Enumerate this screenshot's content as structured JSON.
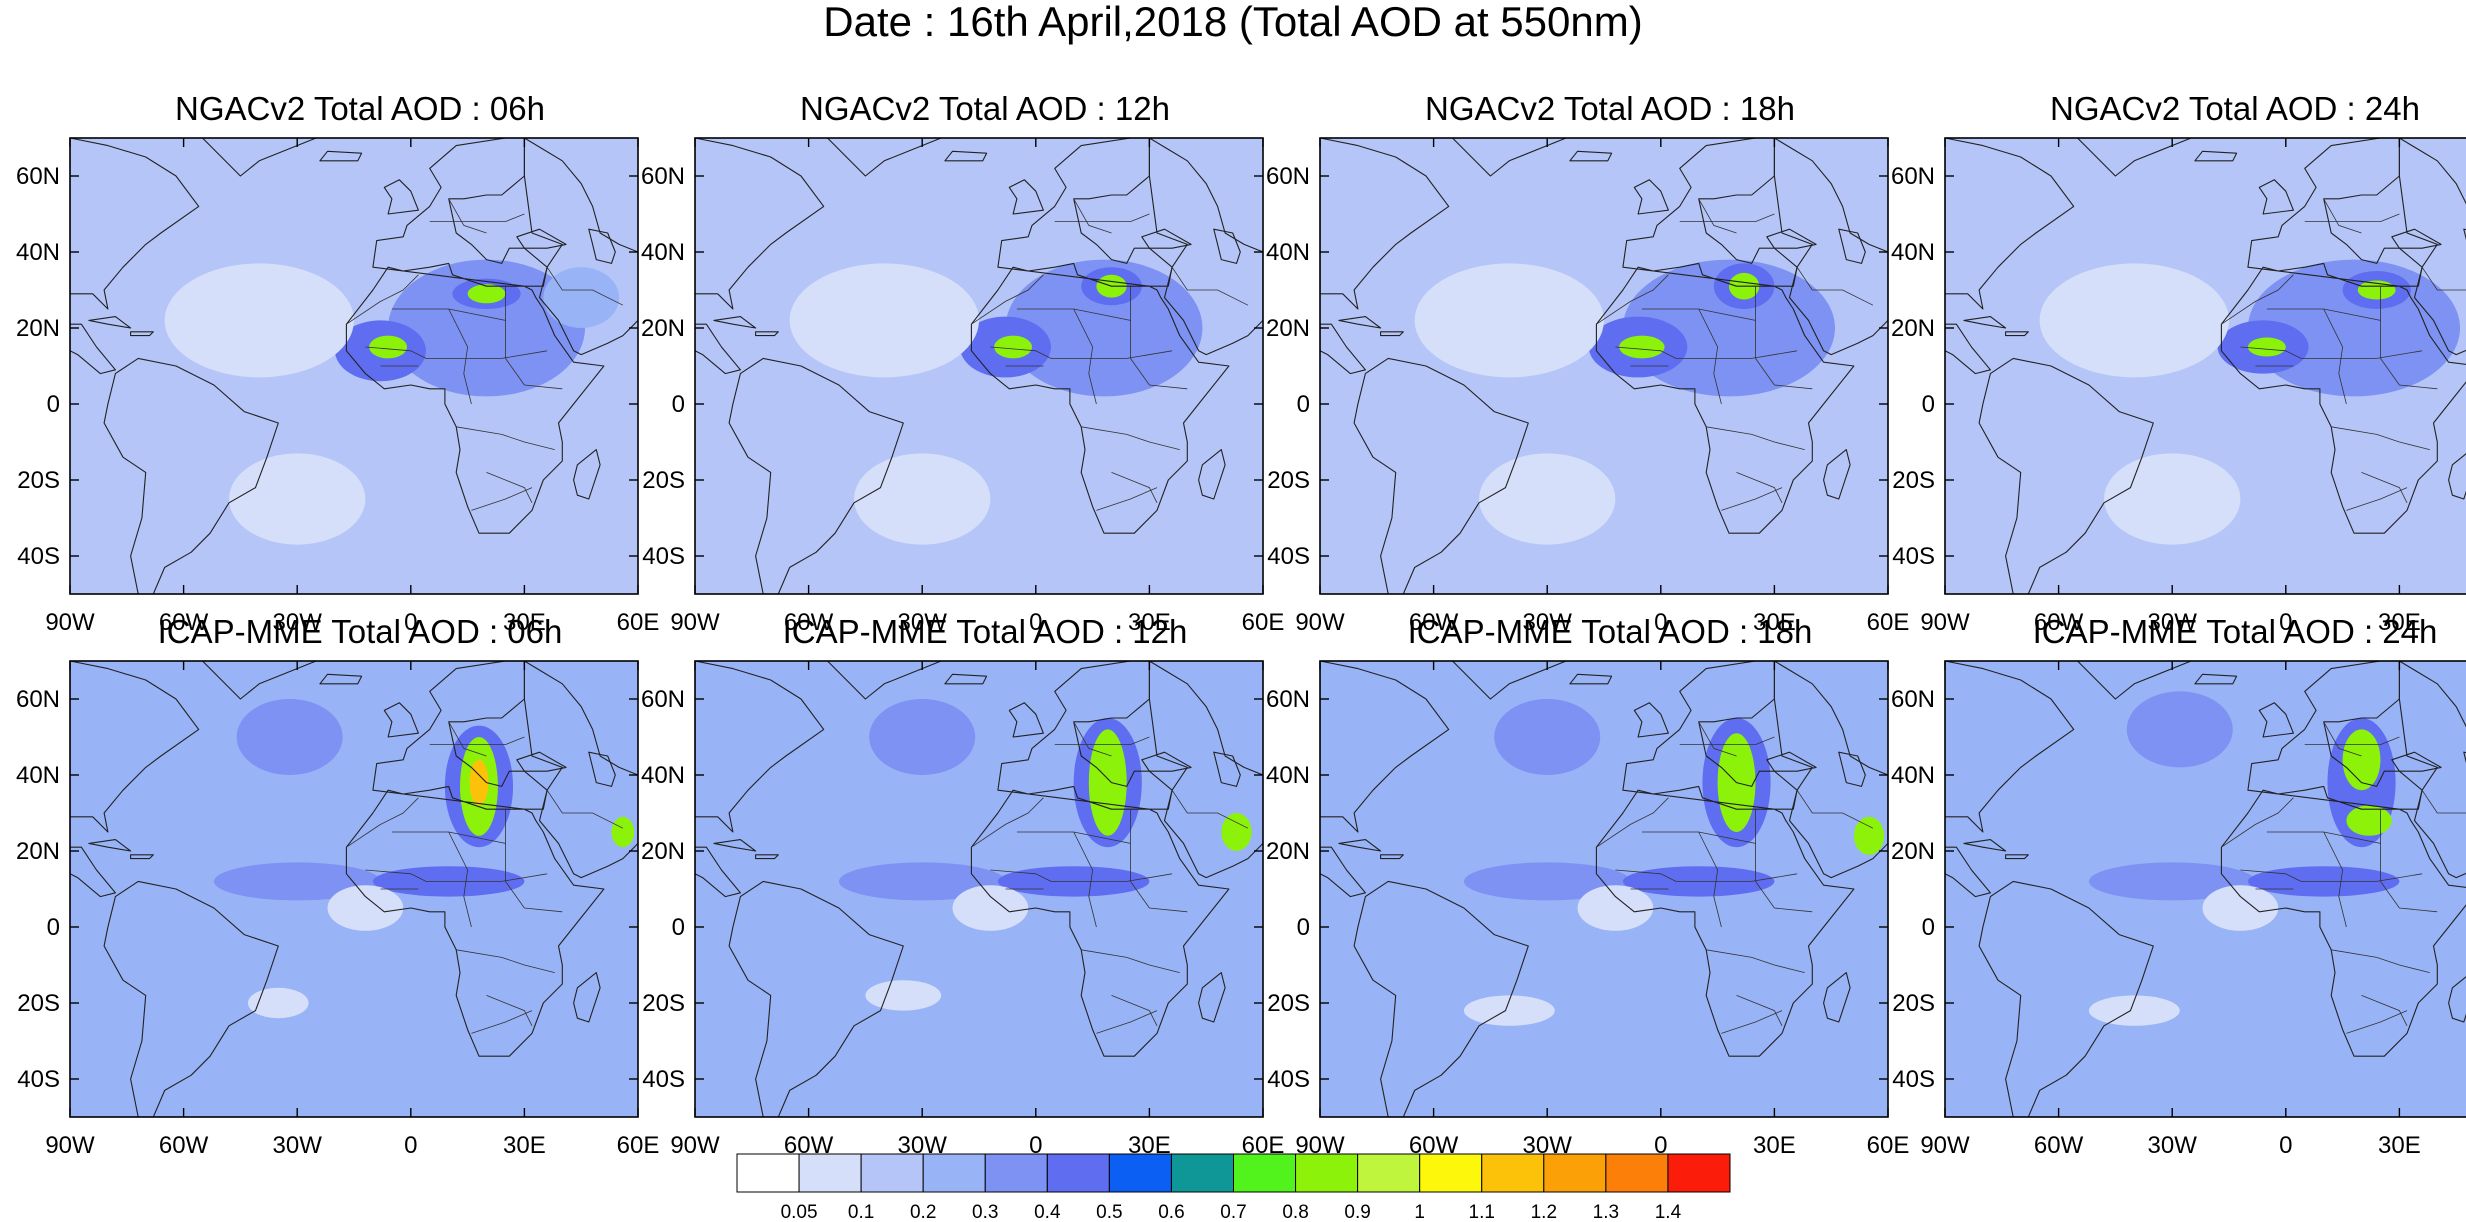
{
  "title": "Date : 16th April,2018 (Total AOD at 550nm)",
  "chart_data": {
    "type": "heatmap",
    "title": "Date : 16th April,2018 (Total AOD at 550nm)",
    "xlim": [
      -90,
      60
    ],
    "ylim": [
      -50,
      70
    ],
    "x_tick_values": [
      -90,
      -60,
      -30,
      0,
      30,
      60
    ],
    "x_tick_labels": [
      "90W",
      "60W",
      "30W",
      "0",
      "30E",
      "60E"
    ],
    "y_tick_values": [
      60,
      40,
      20,
      0,
      -20,
      -40
    ],
    "y_tick_labels": [
      "60N",
      "40N",
      "20N",
      "0",
      "20S",
      "40S"
    ],
    "colorbar": {
      "levels": [
        "0.05",
        "0.1",
        "0.2",
        "0.3",
        "0.4",
        "0.5",
        "0.6",
        "0.7",
        "0.8",
        "0.9",
        "1",
        "1.1",
        "1.2",
        "1.3",
        "1.4"
      ],
      "colors": [
        "#ffffff",
        "#d6dffa",
        "#b5c5f7",
        "#99b3f7",
        "#7d92f2",
        "#5f6df0",
        "#0b5ff2",
        "#0f9696",
        "#52f21c",
        "#8df20a",
        "#bff53d",
        "#fcf70b",
        "#fcc20a",
        "#fca007",
        "#fb7f09",
        "#fc1c0a"
      ]
    },
    "panels": [
      {
        "model": "NGACv2",
        "title": "NGACv2 Total AOD : 06h",
        "forecast_hour": "06h",
        "background_aod": 0.1,
        "features": [
          {
            "lon": 20,
            "lat": 20,
            "rlon": 26,
            "rlat": 18,
            "aod": 0.3
          },
          {
            "lon": -8,
            "lat": 14,
            "rlon": 12,
            "rlat": 8,
            "aod": 0.4
          },
          {
            "lon": -6,
            "lat": 15,
            "rlon": 5,
            "rlat": 3,
            "aod": 0.8
          },
          {
            "lon": 20,
            "lat": 29,
            "rlon": 9,
            "rlat": 4,
            "aod": 0.4
          },
          {
            "lon": 20,
            "lat": 29,
            "rlon": 5,
            "rlat": 2.5,
            "aod": 0.8
          },
          {
            "lon": 45,
            "lat": 28,
            "rlon": 10,
            "rlat": 8,
            "aod": 0.2
          },
          {
            "lon": -40,
            "lat": 22,
            "rlon": 25,
            "rlat": 15,
            "aod": 0.05
          },
          {
            "lon": -30,
            "lat": -25,
            "rlon": 18,
            "rlat": 12,
            "aod": 0.05
          }
        ]
      },
      {
        "model": "NGACv2",
        "title": "NGACv2 Total AOD : 12h",
        "forecast_hour": "12h",
        "background_aod": 0.1,
        "features": [
          {
            "lon": 18,
            "lat": 20,
            "rlon": 26,
            "rlat": 18,
            "aod": 0.3
          },
          {
            "lon": -8,
            "lat": 15,
            "rlon": 12,
            "rlat": 8,
            "aod": 0.4
          },
          {
            "lon": -6,
            "lat": 15,
            "rlon": 5,
            "rlat": 3,
            "aod": 0.8
          },
          {
            "lon": 20,
            "lat": 31,
            "rlon": 8,
            "rlat": 5,
            "aod": 0.4
          },
          {
            "lon": 20,
            "lat": 31,
            "rlon": 4,
            "rlat": 3,
            "aod": 0.8
          },
          {
            "lon": -40,
            "lat": 22,
            "rlon": 25,
            "rlat": 15,
            "aod": 0.05
          },
          {
            "lon": -30,
            "lat": -25,
            "rlon": 18,
            "rlat": 12,
            "aod": 0.05
          }
        ]
      },
      {
        "model": "NGACv2",
        "title": "NGACv2 Total AOD : 18h",
        "forecast_hour": "18h",
        "background_aod": 0.1,
        "features": [
          {
            "lon": 18,
            "lat": 20,
            "rlon": 28,
            "rlat": 18,
            "aod": 0.3
          },
          {
            "lon": -6,
            "lat": 15,
            "rlon": 13,
            "rlat": 8,
            "aod": 0.4
          },
          {
            "lon": -5,
            "lat": 15,
            "rlon": 6,
            "rlat": 3,
            "aod": 0.8
          },
          {
            "lon": 22,
            "lat": 31,
            "rlon": 8,
            "rlat": 6,
            "aod": 0.4
          },
          {
            "lon": 22,
            "lat": 31,
            "rlon": 4,
            "rlat": 3.5,
            "aod": 0.8
          },
          {
            "lon": -40,
            "lat": 22,
            "rlon": 25,
            "rlat": 15,
            "aod": 0.05
          },
          {
            "lon": -30,
            "lat": -25,
            "rlon": 18,
            "rlat": 12,
            "aod": 0.05
          }
        ]
      },
      {
        "model": "NGACv2",
        "title": "NGACv2 Total AOD : 24h",
        "forecast_hour": "24h",
        "background_aod": 0.1,
        "features": [
          {
            "lon": 18,
            "lat": 20,
            "rlon": 28,
            "rlat": 18,
            "aod": 0.3
          },
          {
            "lon": -6,
            "lat": 15,
            "rlon": 12,
            "rlat": 7,
            "aod": 0.4
          },
          {
            "lon": -5,
            "lat": 15,
            "rlon": 5,
            "rlat": 2.5,
            "aod": 0.8
          },
          {
            "lon": 24,
            "lat": 30,
            "rlon": 9,
            "rlat": 5,
            "aod": 0.4
          },
          {
            "lon": 24,
            "lat": 30,
            "rlon": 5,
            "rlat": 2.5,
            "aod": 0.8
          },
          {
            "lon": -40,
            "lat": 22,
            "rlon": 25,
            "rlat": 15,
            "aod": 0.05
          },
          {
            "lon": -30,
            "lat": -25,
            "rlon": 18,
            "rlat": 12,
            "aod": 0.05
          }
        ]
      },
      {
        "model": "ICAP-MME",
        "title": "ICAP-MME Total AOD : 06h",
        "forecast_hour": "06h",
        "background_aod": 0.2,
        "features": [
          {
            "lon": -32,
            "lat": 50,
            "rlon": 14,
            "rlat": 10,
            "aod": 0.3
          },
          {
            "lon": -30,
            "lat": 12,
            "rlon": 22,
            "rlat": 5,
            "aod": 0.3
          },
          {
            "lon": 10,
            "lat": 12,
            "rlon": 20,
            "rlat": 4,
            "aod": 0.4
          },
          {
            "lon": 18,
            "lat": 37,
            "rlon": 9,
            "rlat": 16,
            "aod": 0.4
          },
          {
            "lon": 18,
            "lat": 37,
            "rlon": 5,
            "rlat": 13,
            "aod": 0.8
          },
          {
            "lon": 18,
            "lat": 38,
            "rlon": 2.5,
            "rlat": 6,
            "aod": 1.1
          },
          {
            "lon": 56,
            "lat": 25,
            "rlon": 3,
            "rlat": 4,
            "aod": 0.8
          },
          {
            "lon": -12,
            "lat": 5,
            "rlon": 10,
            "rlat": 6,
            "aod": 0.05
          },
          {
            "lon": -35,
            "lat": -20,
            "rlon": 8,
            "rlat": 4,
            "aod": 0.05
          }
        ]
      },
      {
        "model": "ICAP-MME",
        "title": "ICAP-MME Total AOD : 12h",
        "forecast_hour": "12h",
        "background_aod": 0.2,
        "features": [
          {
            "lon": -30,
            "lat": 50,
            "rlon": 14,
            "rlat": 10,
            "aod": 0.3
          },
          {
            "lon": -30,
            "lat": 12,
            "rlon": 22,
            "rlat": 5,
            "aod": 0.3
          },
          {
            "lon": 10,
            "lat": 12,
            "rlon": 20,
            "rlat": 4,
            "aod": 0.4
          },
          {
            "lon": 19,
            "lat": 38,
            "rlon": 9,
            "rlat": 17,
            "aod": 0.4
          },
          {
            "lon": 19,
            "lat": 38,
            "rlon": 5,
            "rlat": 14,
            "aod": 0.8
          },
          {
            "lon": 53,
            "lat": 25,
            "rlon": 4,
            "rlat": 5,
            "aod": 0.8
          },
          {
            "lon": -12,
            "lat": 5,
            "rlon": 10,
            "rlat": 6,
            "aod": 0.05
          },
          {
            "lon": -35,
            "lat": -18,
            "rlon": 10,
            "rlat": 4,
            "aod": 0.05
          }
        ]
      },
      {
        "model": "ICAP-MME",
        "title": "ICAP-MME Total AOD : 18h",
        "forecast_hour": "18h",
        "background_aod": 0.2,
        "features": [
          {
            "lon": -30,
            "lat": 50,
            "rlon": 14,
            "rlat": 10,
            "aod": 0.3
          },
          {
            "lon": -30,
            "lat": 12,
            "rlon": 22,
            "rlat": 5,
            "aod": 0.3
          },
          {
            "lon": 10,
            "lat": 12,
            "rlon": 20,
            "rlat": 4,
            "aod": 0.4
          },
          {
            "lon": 20,
            "lat": 38,
            "rlon": 9,
            "rlat": 17,
            "aod": 0.4
          },
          {
            "lon": 20,
            "lat": 38,
            "rlon": 5,
            "rlat": 13,
            "aod": 0.8
          },
          {
            "lon": 55,
            "lat": 24,
            "rlon": 4,
            "rlat": 5,
            "aod": 0.8
          },
          {
            "lon": -12,
            "lat": 5,
            "rlon": 10,
            "rlat": 6,
            "aod": 0.05
          },
          {
            "lon": -40,
            "lat": -22,
            "rlon": 12,
            "rlat": 4,
            "aod": 0.05
          }
        ]
      },
      {
        "model": "ICAP-MME",
        "title": "ICAP-MME Total AOD : 24h",
        "forecast_hour": "24h",
        "background_aod": 0.2,
        "features": [
          {
            "lon": -28,
            "lat": 52,
            "rlon": 14,
            "rlat": 10,
            "aod": 0.3
          },
          {
            "lon": -30,
            "lat": 12,
            "rlon": 22,
            "rlat": 5,
            "aod": 0.3
          },
          {
            "lon": 10,
            "lat": 12,
            "rlon": 20,
            "rlat": 4,
            "aod": 0.4
          },
          {
            "lon": 20,
            "lat": 38,
            "rlon": 9,
            "rlat": 17,
            "aod": 0.4
          },
          {
            "lon": 20,
            "lat": 44,
            "rlon": 5,
            "rlat": 8,
            "aod": 0.8
          },
          {
            "lon": 22,
            "lat": 28,
            "rlon": 6,
            "rlat": 4,
            "aod": 0.8
          },
          {
            "lon": 56,
            "lat": 25,
            "rlon": 3,
            "rlat": 4,
            "aod": 0.8
          },
          {
            "lon": -12,
            "lat": 5,
            "rlon": 10,
            "rlat": 6,
            "aod": 0.05
          },
          {
            "lon": -40,
            "lat": -22,
            "rlon": 12,
            "rlat": 4,
            "aod": 0.05
          }
        ]
      }
    ]
  }
}
